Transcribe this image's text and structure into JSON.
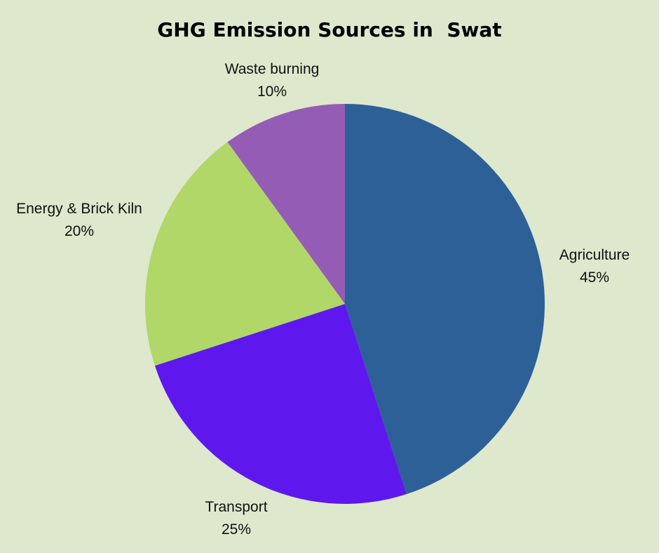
{
  "chart_data": {
    "type": "pie",
    "title": "GHG Emission Sources in  Swat",
    "slices": [
      {
        "label": "Agriculture",
        "value": 45,
        "value_text": "45%",
        "color": "#2e6098"
      },
      {
        "label": "Transport",
        "value": 25,
        "value_text": "25%",
        "color": "#5e18ee"
      },
      {
        "label": "Energy & Brick Kiln",
        "value": 20,
        "value_text": "20%",
        "color": "#b0d768"
      },
      {
        "label": "Waste burning",
        "value": 10,
        "value_text": "10%",
        "color": "#955cb5"
      }
    ],
    "start_angle": "12 o'clock",
    "direction": "clockwise",
    "legend": "none",
    "labels": "outside"
  },
  "colors": {
    "background": "#dde8cd"
  }
}
